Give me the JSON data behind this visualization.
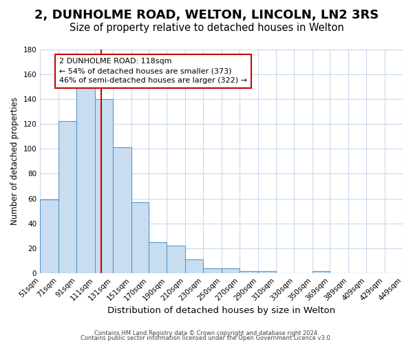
{
  "title": "2, DUNHOLME ROAD, WELTON, LINCOLN, LN2 3RS",
  "subtitle": "Size of property relative to detached houses in Welton",
  "xlabel": "Distribution of detached houses by size in Welton",
  "ylabel": "Number of detached properties",
  "bar_values": [
    59,
    122,
    150,
    140,
    101,
    57,
    25,
    22,
    11,
    4,
    4,
    2,
    2,
    0,
    0,
    2,
    0,
    0,
    0,
    0
  ],
  "bin_edges": [
    51,
    71,
    91,
    111,
    131,
    151,
    170,
    190,
    210,
    230,
    250,
    270,
    290,
    310,
    330,
    350,
    369,
    389,
    409,
    429,
    449
  ],
  "tick_labels": [
    "51sqm",
    "71sqm",
    "91sqm",
    "111sqm",
    "131sqm",
    "151sqm",
    "170sqm",
    "190sqm",
    "210sqm",
    "230sqm",
    "250sqm",
    "270sqm",
    "290sqm",
    "310sqm",
    "330sqm",
    "350sqm",
    "369sqm",
    "389sqm",
    "409sqm",
    "429sqm",
    "449sqm"
  ],
  "bar_color": "#c9ddf0",
  "bar_edge_color": "#5599cc",
  "grid_color": "#c8d8ec",
  "background_color": "#ffffff",
  "red_line_x": 118,
  "annotation_line1": "2 DUNHOLME ROAD: 118sqm",
  "annotation_line2": "← 54% of detached houses are smaller (373)",
  "annotation_line3": "46% of semi-detached houses are larger (322) →",
  "ylim": [
    0,
    180
  ],
  "yticks": [
    0,
    20,
    40,
    60,
    80,
    100,
    120,
    140,
    160,
    180
  ],
  "footer_line1": "Contains HM Land Registry data © Crown copyright and database right 2024.",
  "footer_line2": "Contains public sector information licensed under the Open Government Licence v3.0.",
  "title_fontsize": 13,
  "subtitle_fontsize": 10.5,
  "xlabel_fontsize": 9.5,
  "ylabel_fontsize": 8.5,
  "tick_fontsize": 7.5,
  "annotation_fontsize": 8
}
